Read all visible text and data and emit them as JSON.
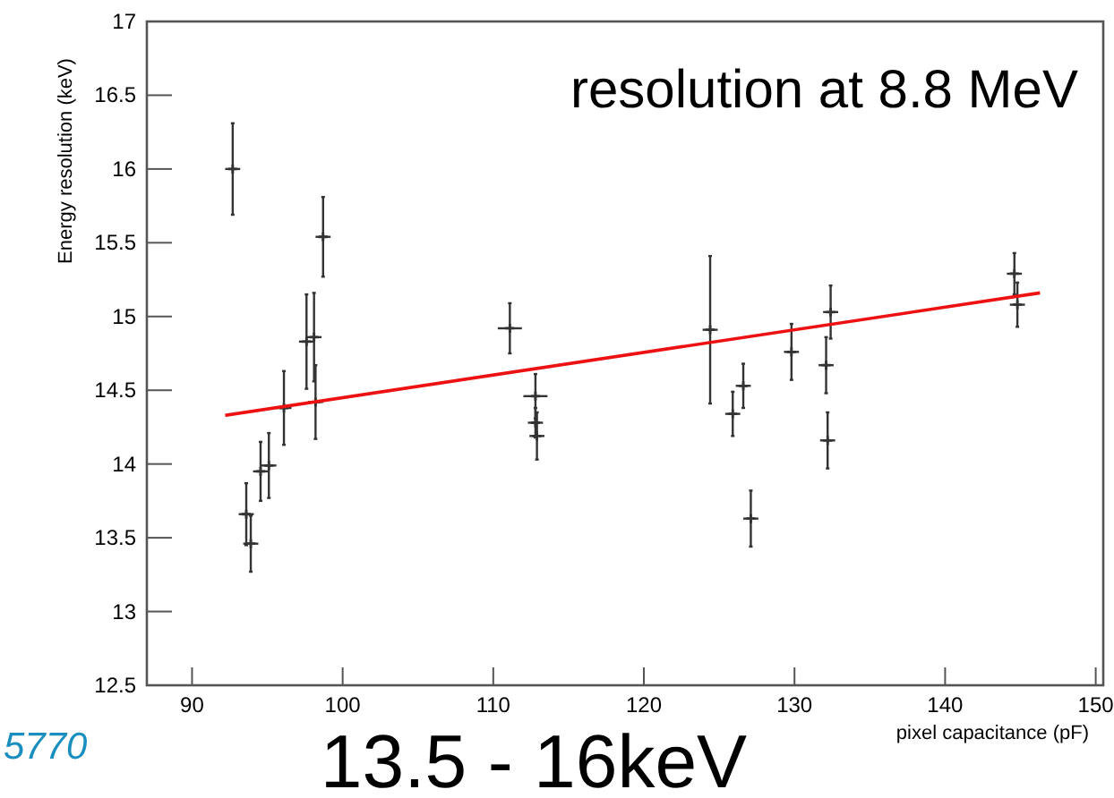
{
  "chart_data": {
    "type": "scatter",
    "title": "resolution at 8.8 MeV",
    "xlabel": "pixel capacitance (pF)",
    "ylabel": "Energy resolution (keV)",
    "xlim": [
      87,
      150.5
    ],
    "xticks": [
      90,
      100,
      110,
      120,
      130,
      140,
      150
    ],
    "ylim": [
      12.5,
      17
    ],
    "yticks": [
      12.5,
      13,
      13.5,
      14,
      14.5,
      15,
      15.5,
      16,
      16.5,
      17
    ],
    "grid": false,
    "series": [
      {
        "color": "#333333",
        "marker": "cross",
        "x": [
          92.7,
          98.7,
          98.1,
          97.6,
          98.2,
          96.1,
          95.1,
          94.55,
          93.6,
          93.9,
          111.1,
          112.8,
          112.8,
          112.9,
          124.4,
          125.9,
          126.6,
          127.1,
          129.8,
          132.1,
          132.4,
          132.2,
          144.6,
          144.8
        ],
        "values": [
          16.0,
          15.54,
          14.86,
          14.83,
          14.42,
          14.38,
          13.99,
          13.95,
          13.66,
          13.46,
          14.92,
          14.46,
          14.28,
          14.19,
          14.91,
          14.34,
          14.53,
          13.63,
          14.76,
          14.67,
          15.03,
          14.16,
          15.29,
          15.08
        ],
        "errors": [
          0.31,
          0.27,
          0.3,
          0.32,
          0.25,
          0.25,
          0.22,
          0.2,
          0.21,
          0.19,
          0.17,
          0.15,
          0.1,
          0.16,
          0.5,
          0.15,
          0.15,
          0.19,
          0.19,
          0.19,
          0.18,
          0.19,
          0.14,
          0.15
        ],
        "xerrors": [
          0.5,
          0.5,
          0.5,
          0.5,
          0.5,
          0.5,
          0.5,
          0.5,
          0.5,
          0.5,
          0.8,
          0.8,
          0.5,
          0.5,
          0.5,
          0.5,
          0.5,
          0.5,
          0.5,
          0.5,
          0.5,
          0.5,
          0.5,
          0.5
        ]
      },
      {
        "type": "line",
        "color": "#ee1111",
        "x": [
          92.2,
          146.3
        ],
        "values": [
          14.33,
          15.16
        ]
      }
    ],
    "annotations": [
      "13.5 - 16keV",
      "5770"
    ]
  }
}
